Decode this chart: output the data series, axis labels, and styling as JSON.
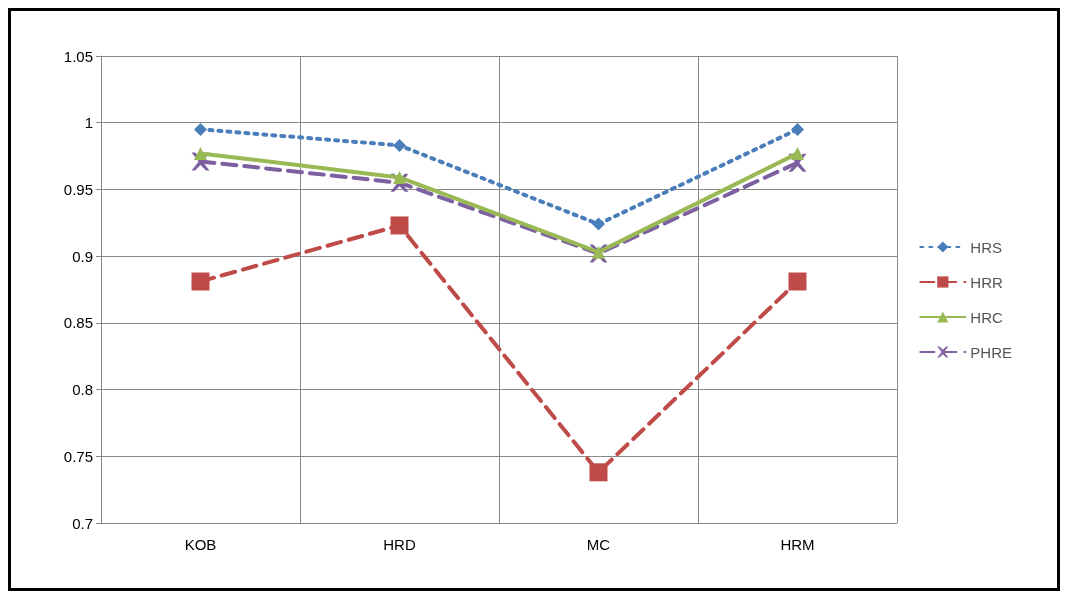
{
  "chart_data": {
    "type": "line",
    "categories": [
      "KOB",
      "HRD",
      "MC",
      "HRM"
    ],
    "series": [
      {
        "name": "HRS",
        "color": "#4a7ebb",
        "values": [
          0.995,
          0.983,
          0.924,
          0.995
        ],
        "marker": "diamond",
        "line_style": "dotted"
      },
      {
        "name": "HRR",
        "color": "#be4b48",
        "values": [
          0.881,
          0.923,
          0.738,
          0.881
        ],
        "marker": "square",
        "line_style": "dashed"
      },
      {
        "name": "HRC",
        "color": "#98b954",
        "values": [
          0.977,
          0.959,
          0.903,
          0.977
        ],
        "marker": "triangle",
        "line_style": "solid"
      },
      {
        "name": "PHRE",
        "color": "#7d60a0",
        "values": [
          0.971,
          0.955,
          0.902,
          0.97
        ],
        "marker": "cross",
        "line_style": "dashed"
      }
    ],
    "ylim": [
      0.7,
      1.05
    ],
    "yticks": [
      0.7,
      0.75,
      0.8,
      0.85,
      0.9,
      0.95,
      1,
      1.05
    ],
    "grid": true,
    "legend": "right"
  }
}
